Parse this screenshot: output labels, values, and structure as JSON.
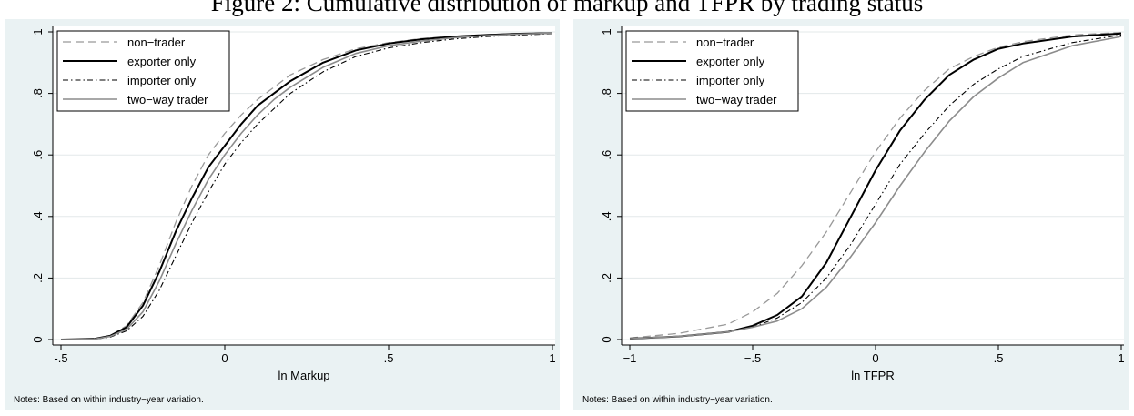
{
  "figure": {
    "title": "Figure 2: Cumulative distribution of markup and TFPR by trading status"
  },
  "series_styles": [
    {
      "name": "non−trader",
      "color": "#999999",
      "dash": "9,5",
      "width": 1.3
    },
    {
      "name": "exporter only",
      "color": "#000000",
      "dash": "",
      "width": 2
    },
    {
      "name": "importer only",
      "color": "#000000",
      "dash": "6,3,1.5,3",
      "width": 1.1
    },
    {
      "name": "two−way trader",
      "color": "#8c8c8c",
      "dash": "",
      "width": 1.6
    }
  ],
  "chart_data": [
    {
      "type": "line",
      "xlabel": "ln Markup",
      "ylabel": "",
      "xlim": [
        -0.52,
        1.02
      ],
      "ylim": [
        0,
        1
      ],
      "xticks": [
        -0.5,
        0,
        0.5,
        1
      ],
      "xtick_labels": [
        "-.5",
        "0",
        ".5",
        "1"
      ],
      "yticks": [
        0,
        0.2,
        0.4,
        0.6,
        0.8,
        1
      ],
      "ytick_labels": [
        "0",
        ".2",
        ".4",
        ".6",
        ".8",
        "1"
      ],
      "grid": true,
      "legend_position": "top-left",
      "note": "Notes: Based on within industry−year variation.",
      "series": [
        {
          "name": "non−trader",
          "x": [
            -0.5,
            -0.4,
            -0.35,
            -0.3,
            -0.25,
            -0.2,
            -0.15,
            -0.1,
            -0.05,
            0,
            0.05,
            0.1,
            0.15,
            0.2,
            0.3,
            0.4,
            0.5,
            0.6,
            0.7,
            0.8,
            0.9,
            1.0
          ],
          "y": [
            0,
            0.002,
            0.012,
            0.045,
            0.12,
            0.24,
            0.38,
            0.5,
            0.6,
            0.67,
            0.73,
            0.78,
            0.82,
            0.86,
            0.91,
            0.945,
            0.965,
            0.978,
            0.986,
            0.991,
            0.995,
            0.997
          ]
        },
        {
          "name": "exporter only",
          "x": [
            -0.5,
            -0.4,
            -0.35,
            -0.3,
            -0.25,
            -0.2,
            -0.15,
            -0.1,
            -0.05,
            0,
            0.05,
            0.1,
            0.15,
            0.2,
            0.3,
            0.4,
            0.5,
            0.6,
            0.7,
            0.8,
            0.9,
            1.0
          ],
          "y": [
            0,
            0.002,
            0.012,
            0.04,
            0.11,
            0.22,
            0.35,
            0.46,
            0.56,
            0.63,
            0.7,
            0.76,
            0.8,
            0.84,
            0.9,
            0.94,
            0.962,
            0.976,
            0.985,
            0.99,
            0.994,
            0.996
          ]
        },
        {
          "name": "importer only",
          "x": [
            -0.5,
            -0.4,
            -0.35,
            -0.3,
            -0.25,
            -0.2,
            -0.15,
            -0.1,
            -0.05,
            0,
            0.05,
            0.1,
            0.15,
            0.2,
            0.3,
            0.4,
            0.5,
            0.6,
            0.7,
            0.8,
            0.9,
            1.0
          ],
          "y": [
            0,
            0.001,
            0.008,
            0.028,
            0.075,
            0.16,
            0.27,
            0.38,
            0.48,
            0.57,
            0.64,
            0.7,
            0.75,
            0.8,
            0.87,
            0.92,
            0.948,
            0.965,
            0.977,
            0.985,
            0.99,
            0.994
          ]
        },
        {
          "name": "two−way trader",
          "x": [
            -0.5,
            -0.4,
            -0.35,
            -0.3,
            -0.25,
            -0.2,
            -0.15,
            -0.1,
            -0.05,
            0,
            0.05,
            0.1,
            0.15,
            0.2,
            0.3,
            0.4,
            0.5,
            0.6,
            0.7,
            0.8,
            0.9,
            1.0
          ],
          "y": [
            0,
            0.001,
            0.01,
            0.033,
            0.09,
            0.19,
            0.31,
            0.42,
            0.52,
            0.6,
            0.67,
            0.73,
            0.78,
            0.82,
            0.885,
            0.93,
            0.955,
            0.97,
            0.981,
            0.988,
            0.993,
            0.996
          ]
        }
      ]
    },
    {
      "type": "line",
      "xlabel": "ln TFPR",
      "ylabel": "",
      "xlim": [
        -1.04,
        1.04
      ],
      "ylim": [
        0,
        1
      ],
      "xticks": [
        -1,
        -0.5,
        0,
        0.5,
        1
      ],
      "xtick_labels": [
        "−1",
        "−.5",
        "0",
        ".5",
        "1"
      ],
      "yticks": [
        0,
        0.2,
        0.4,
        0.6,
        0.8,
        1
      ],
      "ytick_labels": [
        "0",
        ".2",
        ".4",
        ".6",
        ".8",
        "1"
      ],
      "grid": true,
      "legend_position": "top-left",
      "note": "Notes: Based on within industry−year variation.",
      "series": [
        {
          "name": "non−trader",
          "x": [
            -1,
            -0.8,
            -0.6,
            -0.5,
            -0.4,
            -0.3,
            -0.2,
            -0.1,
            0,
            0.1,
            0.2,
            0.3,
            0.4,
            0.5,
            0.6,
            0.8,
            1.0
          ],
          "y": [
            0.005,
            0.02,
            0.05,
            0.09,
            0.15,
            0.24,
            0.35,
            0.48,
            0.61,
            0.72,
            0.81,
            0.88,
            0.92,
            0.95,
            0.968,
            0.99,
            0.998
          ]
        },
        {
          "name": "exporter only",
          "x": [
            -1,
            -0.8,
            -0.6,
            -0.5,
            -0.4,
            -0.3,
            -0.2,
            -0.1,
            0,
            0.1,
            0.2,
            0.3,
            0.4,
            0.5,
            0.6,
            0.8,
            1.0
          ],
          "y": [
            0.003,
            0.01,
            0.025,
            0.045,
            0.08,
            0.14,
            0.25,
            0.4,
            0.55,
            0.68,
            0.78,
            0.86,
            0.91,
            0.945,
            0.962,
            0.985,
            0.995
          ]
        },
        {
          "name": "importer only",
          "x": [
            -1,
            -0.8,
            -0.6,
            -0.5,
            -0.4,
            -0.3,
            -0.2,
            -0.1,
            0,
            0.1,
            0.2,
            0.3,
            0.4,
            0.5,
            0.6,
            0.8,
            1.0
          ],
          "y": [
            0.003,
            0.01,
            0.025,
            0.04,
            0.07,
            0.12,
            0.2,
            0.31,
            0.44,
            0.57,
            0.67,
            0.76,
            0.83,
            0.88,
            0.92,
            0.965,
            0.99
          ]
        },
        {
          "name": "two−way trader",
          "x": [
            -1,
            -0.8,
            -0.6,
            -0.5,
            -0.4,
            -0.3,
            -0.2,
            -0.1,
            0,
            0.1,
            0.2,
            0.3,
            0.4,
            0.5,
            0.6,
            0.8,
            1.0
          ],
          "y": [
            0.003,
            0.01,
            0.025,
            0.04,
            0.06,
            0.1,
            0.17,
            0.27,
            0.38,
            0.5,
            0.61,
            0.71,
            0.79,
            0.85,
            0.9,
            0.955,
            0.985
          ]
        }
      ]
    }
  ]
}
